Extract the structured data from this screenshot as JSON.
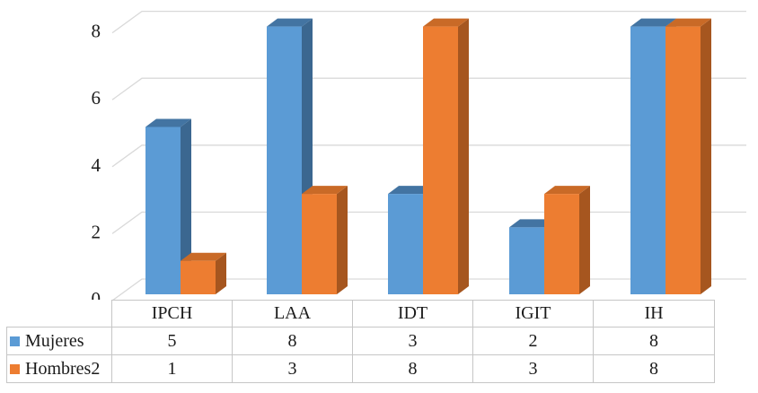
{
  "chart_data": {
    "type": "bar",
    "subtype": "3d-clustered-column",
    "title": "",
    "xlabel": "",
    "ylabel": "",
    "categories": [
      "IPCH",
      "LAA",
      "IDT",
      "IGIT",
      "IH"
    ],
    "series": [
      {
        "name": "Mujeres",
        "values": [
          5,
          8,
          3,
          2,
          8
        ],
        "color_front": "#5B9BD5",
        "color_top": "#4374A2",
        "color_side": "#3B6790"
      },
      {
        "name": "Hombres2",
        "values": [
          1,
          3,
          8,
          3,
          8
        ],
        "color_front": "#ED7D31",
        "color_top": "#C96A27",
        "color_side": "#A6561F"
      }
    ],
    "y_ticks": [
      0,
      2,
      4,
      6,
      8
    ],
    "ylim": [
      0,
      8
    ],
    "grid": true,
    "legend_position": "data-table-left"
  },
  "styles": {
    "background": "#FFFFFF",
    "gridline_color": "#D9D9D9",
    "table_border_color": "#C6C6C6",
    "text_color": "#1B1B1B"
  }
}
